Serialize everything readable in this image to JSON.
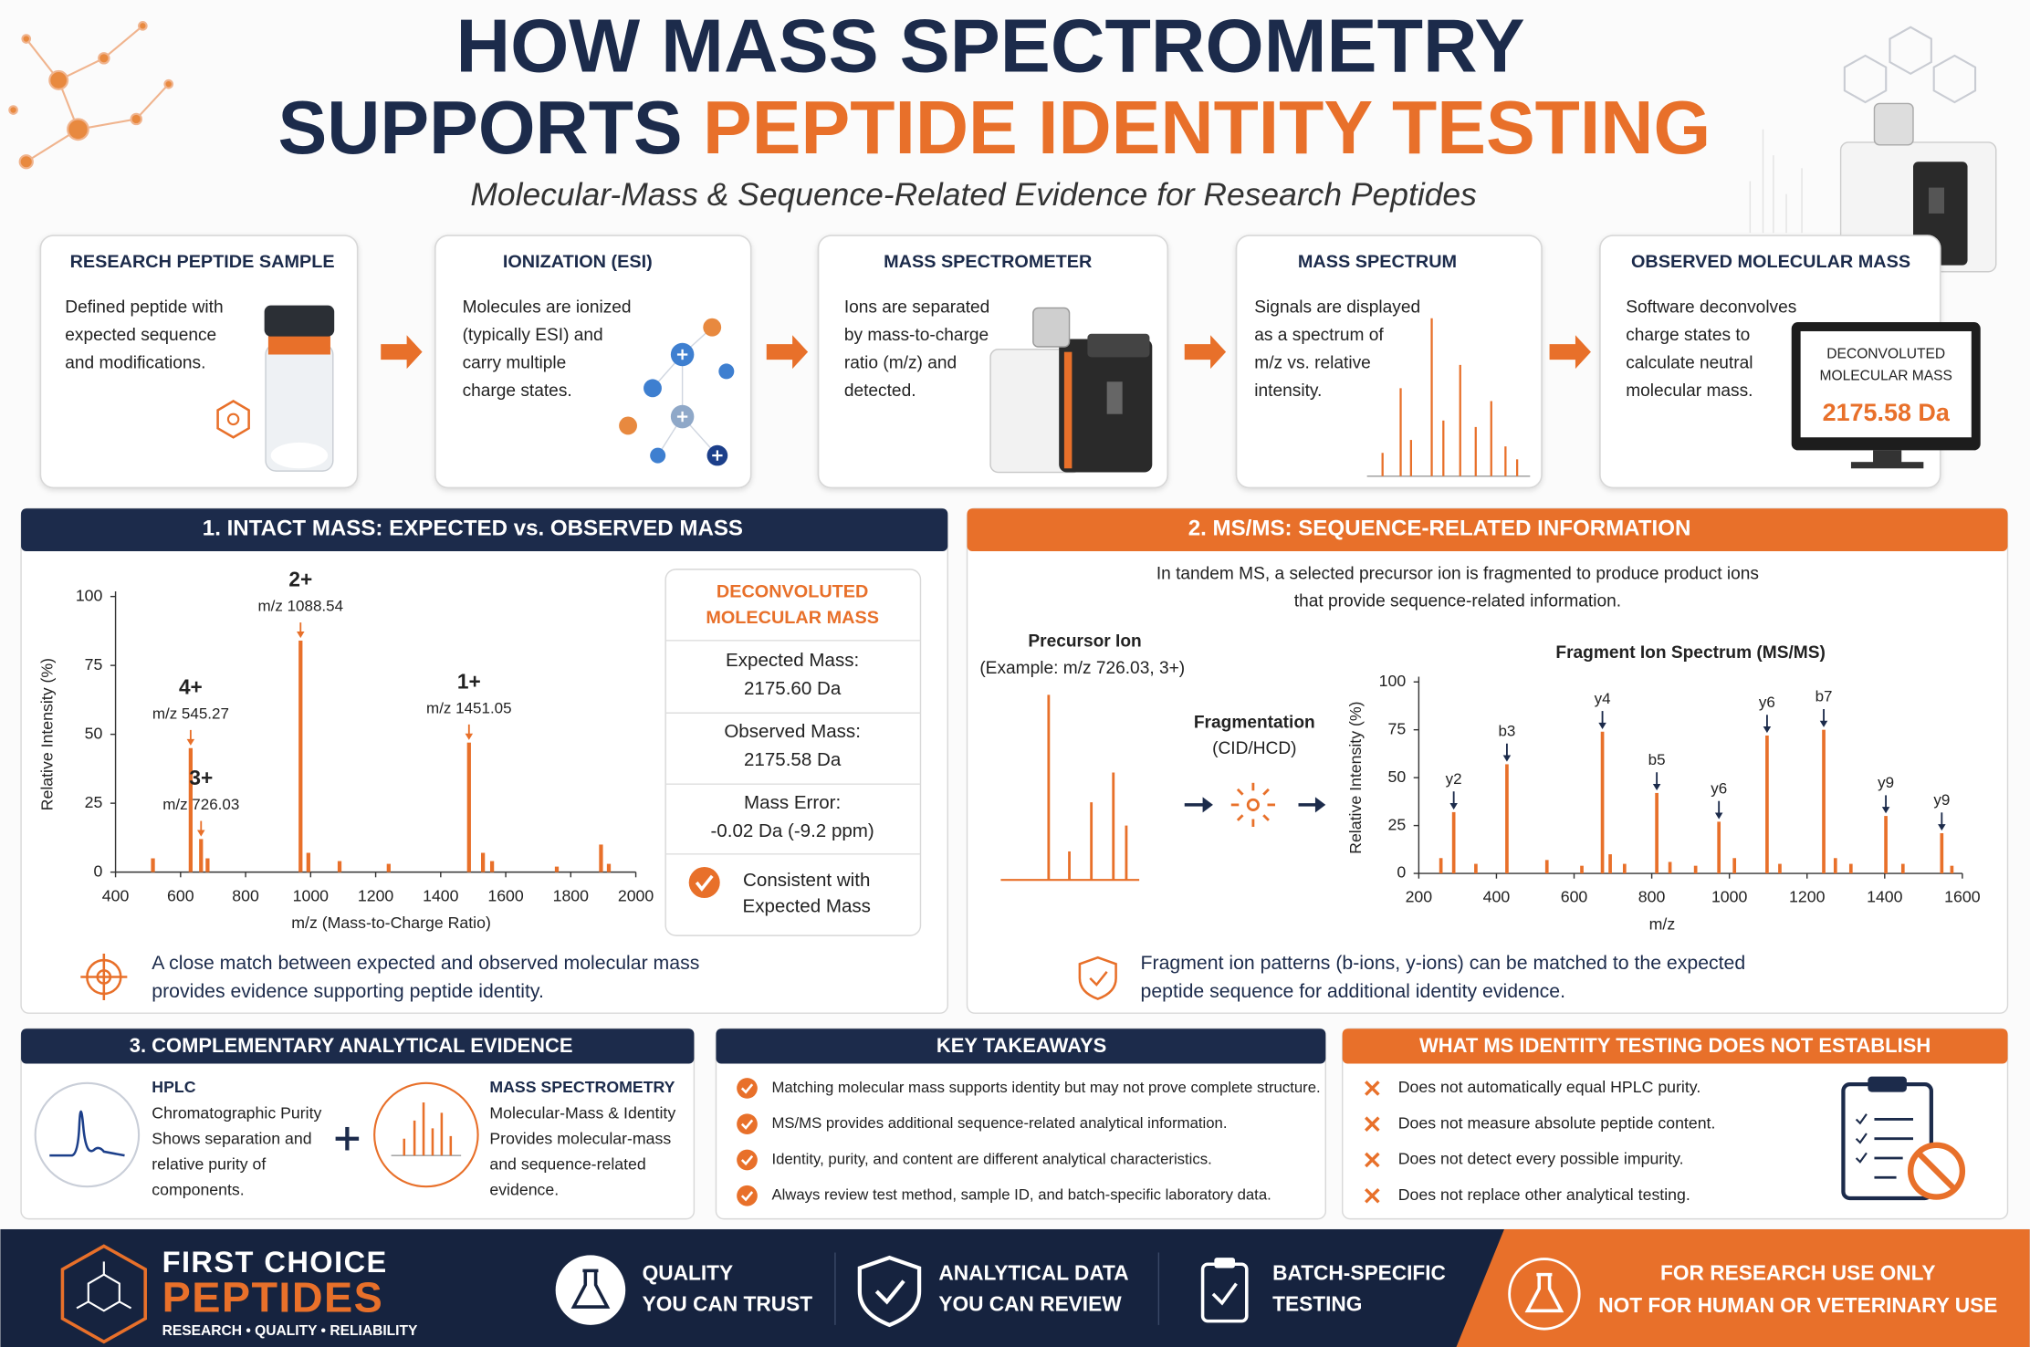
{
  "header": {
    "title_top": "HOW MASS SPECTROMETRY",
    "title_navy": "SUPPORTS",
    "title_orange": "PEPTIDE IDENTITY TESTING",
    "subtitle": "Molecular-Mass & Sequence-Related Evidence for Research Peptides"
  },
  "workflow": [
    {
      "title": "RESEARCH PEPTIDE SAMPLE",
      "lines": [
        "Defined peptide with",
        "expected sequence",
        "and modifications."
      ]
    },
    {
      "title": "IONIZATION (ESI)",
      "lines": [
        "Molecules are ionized",
        "(typically ESI) and",
        "carry multiple",
        "charge states."
      ]
    },
    {
      "title": "MASS SPECTROMETER",
      "lines": [
        "Ions are separated",
        "by mass-to-charge",
        "ratio (m/z) and",
        "detected."
      ]
    },
    {
      "title": "MASS SPECTRUM",
      "lines": [
        "Signals are displayed",
        "as a spectrum of",
        "m/z vs. relative",
        "intensity."
      ]
    },
    {
      "title": "OBSERVED MOLECULAR MASS",
      "lines": [
        "Software deconvolves",
        "charge states to",
        "calculate neutral",
        "molecular mass."
      ],
      "screen": [
        "DECONVOLUTED",
        "MOLECULAR MASS"
      ],
      "screen_value": "2175.58 Da"
    }
  ],
  "intact": {
    "heading": "1. INTACT MASS: EXPECTED vs. OBSERVED MASS",
    "panel_title": [
      "DECONVOLUTED",
      "MOLECULAR MASS"
    ],
    "rows": [
      {
        "label": "Expected Mass:",
        "value": "2175.60 Da"
      },
      {
        "label": "Observed Mass:",
        "value": "2175.58 Da"
      },
      {
        "label": "Mass Error:",
        "value": "-0.02 Da (-9.2 ppm)"
      }
    ],
    "verdict": [
      "Consistent with",
      "Expected Mass"
    ],
    "note": [
      "A close match between expected and observed molecular mass",
      "provides evidence supporting peptide identity."
    ]
  },
  "chart_data": [
    {
      "type": "bar",
      "x": [
        515,
        631,
        663,
        683,
        969,
        993,
        1089,
        1240,
        1487,
        1530,
        1558,
        1757,
        1893,
        1917
      ],
      "values": [
        5,
        45,
        12,
        5,
        84,
        7,
        4,
        3,
        47,
        7,
        4,
        2,
        10,
        3
      ],
      "color": "#e8702a",
      "xlim": [
        400,
        2000
      ],
      "xticks": [
        400,
        600,
        800,
        1000,
        1200,
        1400,
        1600,
        1800,
        2000
      ],
      "ylim": [
        0,
        100
      ],
      "yticks": [
        0,
        25,
        50,
        75,
        100
      ],
      "xlabel": "m/z (Mass-to-Charge Ratio)",
      "ylabel": "Relative Intensity (%)",
      "annotations": [
        {
          "label": "4+",
          "text": "m/z 545.27"
        },
        {
          "label": "3+",
          "text": "m/z 726.03"
        },
        {
          "label": "2+",
          "text": "m/z 1088.54"
        },
        {
          "label": "1+",
          "text": "m/z 1451.05"
        }
      ]
    },
    {
      "type": "bar",
      "title": "Fragment Ion Spectrum (MS/MS)",
      "x": [
        257,
        290,
        347,
        427,
        530,
        620,
        673,
        693,
        730,
        813,
        847,
        913,
        973,
        1013,
        1097,
        1130,
        1243,
        1273,
        1313,
        1403,
        1447,
        1547,
        1573
      ],
      "values": [
        8,
        32,
        5,
        57,
        7,
        4,
        74,
        10,
        5,
        42,
        6,
        4,
        27,
        8,
        72,
        5,
        75,
        8,
        5,
        30,
        5,
        21,
        4
      ],
      "color": "#e8702a",
      "xlim": [
        200,
        1600
      ],
      "xticks": [
        200,
        400,
        600,
        800,
        1000,
        1200,
        1400,
        1600
      ],
      "ylim": [
        0,
        100
      ],
      "yticks": [
        0,
        25,
        50,
        75,
        100
      ],
      "xlabel": "m/z",
      "ylabel": "Relative Intensity (%)",
      "annotations": [
        {
          "label": "y2"
        },
        {
          "label": "b3"
        },
        {
          "label": "y4"
        },
        {
          "label": "b5"
        },
        {
          "label": "y6"
        },
        {
          "label": "y6"
        },
        {
          "label": "b7"
        },
        {
          "label": "y9"
        },
        {
          "label": "y9"
        }
      ]
    }
  ],
  "msms": {
    "heading": "2. MS/MS: SEQUENCE-RELATED INFORMATION",
    "intro": [
      "In tandem MS, a selected precursor ion is fragmented to produce product ions",
      "that provide sequence-related information."
    ],
    "precursor": [
      "Precursor Ion",
      "(Example: m/z 726.03, 3+)"
    ],
    "fragmentation": [
      "Fragmentation",
      "(CID/HCD)"
    ],
    "note": [
      "Fragment ion patterns (b-ions, y-ions) can be matched to the expected",
      "peptide sequence for additional identity evidence."
    ]
  },
  "complementary": {
    "heading": "3. COMPLEMENTARY ANALYTICAL EVIDENCE",
    "items": [
      {
        "title": "HPLC",
        "lines": [
          "Chromatographic Purity",
          "Shows separation and",
          "relative purity of",
          "components."
        ]
      },
      {
        "title": "MASS SPECTROMETRY",
        "lines": [
          "Molecular-Mass & Identity",
          "Provides molecular-mass",
          "and sequence-related",
          "evidence."
        ]
      }
    ]
  },
  "takeaways": {
    "heading": "KEY TAKEAWAYS",
    "items": [
      "Matching molecular mass supports identity but may not prove complete structure.",
      "MS/MS provides additional sequence-related analytical information.",
      "Identity, purity, and content are different analytical characteristics.",
      "Always review test method, sample ID, and batch-specific laboratory data."
    ]
  },
  "limits": {
    "heading": "WHAT MS IDENTITY TESTING DOES NOT ESTABLISH",
    "items": [
      "Does not automatically equal HPLC purity.",
      "Does not measure absolute peptide content.",
      "Does not detect every possible impurity.",
      "Does not replace other analytical testing."
    ]
  },
  "footer": {
    "brand": "FIRST CHOICE",
    "brand_accent": "PEPTIDES",
    "tagline": "RESEARCH • QUALITY • RELIABILITY",
    "badges": [
      [
        "QUALITY",
        "YOU CAN TRUST"
      ],
      [
        "ANALYTICAL DATA",
        "YOU CAN REVIEW"
      ],
      [
        "BATCH-SPECIFIC",
        "TESTING"
      ]
    ],
    "notice": [
      "FOR RESEARCH USE ONLY",
      "NOT FOR HUMAN OR VETERINARY USE"
    ]
  }
}
